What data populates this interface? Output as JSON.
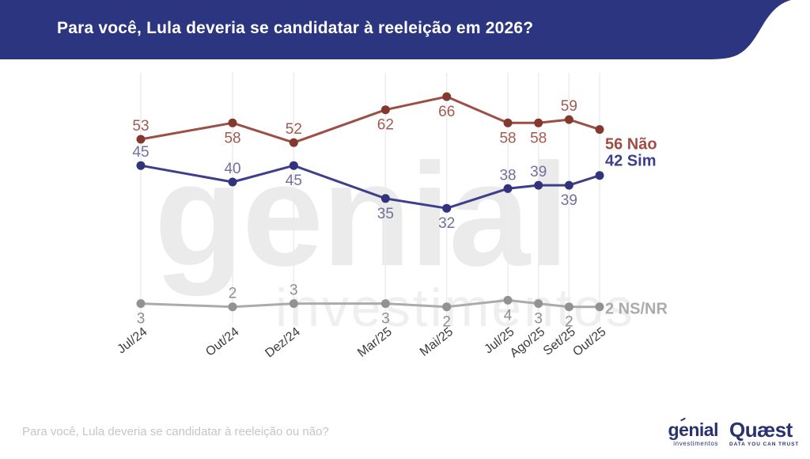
{
  "header": {
    "title": "Para você, Lula deveria se candidatar à reeleição em 2026?",
    "bg_color": "#2c3580",
    "text_color": "#ffffff"
  },
  "watermark": {
    "line1": "genial",
    "line2": "investimentos"
  },
  "chart_data": {
    "type": "line",
    "title": "Para você, Lula deveria se candidatar à reeleição em 2026?",
    "categories": [
      "Jul/24",
      "Out/24",
      "Dez/24",
      "Mar/25",
      "Mai/25",
      "Jul/25",
      "Ago/25",
      "Set/25",
      "Out/25"
    ],
    "month_offsets": [
      0,
      3,
      5,
      8,
      10,
      12,
      13,
      14,
      15
    ],
    "xlabel": "",
    "ylabel": "",
    "ylim": [
      0,
      72
    ],
    "grid": true,
    "grid_color": "#ececec",
    "x_label_color": "#3c3c3c",
    "legend_position": "right-end-labels",
    "series": [
      {
        "name": "Não",
        "values": [
          53,
          58,
          52,
          62,
          66,
          58,
          58,
          59,
          56
        ],
        "color": "#9c4f44",
        "point_color": "#83392f",
        "label_color": "#a25b50",
        "end_label": "56 Não",
        "end_label_dy": 25,
        "label_pos": [
          "above",
          "below",
          "above",
          "below",
          "below",
          "below",
          "below",
          "above",
          "end"
        ]
      },
      {
        "name": "Sim",
        "values": [
          45,
          40,
          45,
          35,
          32,
          38,
          39,
          39,
          42
        ],
        "color": "#3e3e8a",
        "point_color": "#32327d",
        "label_color": "#70709a",
        "end_label": "42 Sim",
        "end_label_dy": -12,
        "label_pos": [
          "above",
          "above",
          "below",
          "below",
          "below",
          "above",
          "above",
          "below",
          "end"
        ]
      },
      {
        "name": "NS/NR",
        "values": [
          3,
          2,
          3,
          3,
          2,
          4,
          3,
          2,
          2
        ],
        "color": "#ababab",
        "point_color": "#929292",
        "label_color": "#8f8f8f",
        "end_label": "2 NS/NR",
        "end_label_dy": 9,
        "label_pos": [
          "below",
          "above",
          "above",
          "below",
          "below",
          "below",
          "below",
          "below",
          "end"
        ]
      }
    ]
  },
  "footer": {
    "question": "Para você, Lula deveria se candidatar à reeleição ou não?",
    "genial_name": "genial",
    "genial_sub": "investimentos",
    "quaest_name": "Quæst",
    "quaest_sub": "DATA YOU CAN TRUST"
  }
}
